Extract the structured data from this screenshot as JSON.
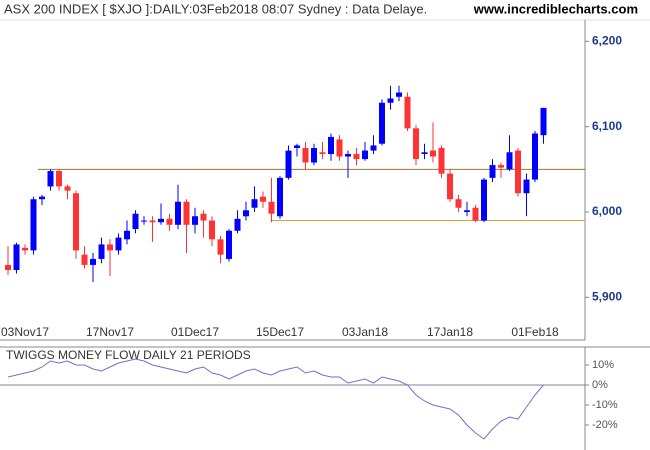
{
  "chart_data": [
    {
      "type": "candlestick",
      "title": "ASX 200 INDEX [ $XJO ]:DAILY:03Feb2018 08:07 Sydney : Data Delaye.",
      "source": "www.incrediblecharts.com",
      "categories": [
        null,
        null,
        "03Nov17",
        null,
        null,
        null,
        null,
        null,
        null,
        null,
        null,
        null,
        "17Nov17",
        null,
        null,
        null,
        null,
        null,
        null,
        null,
        null,
        null,
        "01Dec17",
        null,
        null,
        null,
        null,
        null,
        null,
        null,
        null,
        null,
        "15Dec17",
        null,
        null,
        null,
        null,
        null,
        null,
        null,
        null,
        null,
        "03Jan18",
        null,
        null,
        null,
        null,
        null,
        null,
        null,
        null,
        null,
        "17Jan18",
        null,
        null,
        null,
        null,
        null,
        null,
        null,
        null,
        null,
        "01Feb18",
        null
      ],
      "open": [
        5938,
        5932,
        5958,
        5955,
        6015,
        6030,
        6048,
        6030,
        6022,
        5950,
        5938,
        5945,
        5962,
        5955,
        5968,
        5980,
        5990,
        5990,
        5988,
        5992,
        5985,
        6012,
        5985,
        5998,
        5990,
        5968,
        5945,
        5978,
        5995,
        6005,
        6018,
        6012,
        5995,
        6040,
        6075,
        6075,
        6058,
        6070,
        6068,
        6085,
        6065,
        6068,
        6062,
        6072,
        6080,
        6128,
        6135,
        6135,
        6098,
        6068,
        6072,
        6075,
        6045,
        6015,
        6000,
        6005,
        5990,
        6040,
        6055,
        6050,
        6072,
        6022,
        6038,
        6090
      ],
      "high": [
        5960,
        5964,
        5962,
        6018,
        6020,
        6050,
        6050,
        6032,
        6025,
        5960,
        5952,
        5970,
        5968,
        5975,
        5990,
        6002,
        5995,
        5995,
        6010,
        5998,
        6032,
        6015,
        6005,
        6002,
        5995,
        5972,
        5980,
        6002,
        6012,
        6030,
        6024,
        6040,
        6042,
        6078,
        6080,
        6082,
        6080,
        6082,
        6092,
        6090,
        6072,
        6075,
        6082,
        6090,
        6132,
        6148,
        6148,
        6140,
        6102,
        6080,
        6105,
        6078,
        6050,
        6020,
        6012,
        6008,
        6040,
        6062,
        6058,
        6090,
        6075,
        6045,
        6095,
        6122
      ],
      "low": [
        5926,
        5928,
        5950,
        5950,
        6008,
        6025,
        6025,
        6015,
        5945,
        5934,
        5918,
        5940,
        5925,
        5950,
        5962,
        5975,
        5985,
        5965,
        5985,
        5978,
        5980,
        5952,
        5975,
        5970,
        5960,
        5940,
        5942,
        5975,
        5990,
        6000,
        6005,
        5988,
        5992,
        6038,
        6065,
        6050,
        6055,
        6062,
        6060,
        6060,
        6040,
        6055,
        6060,
        6068,
        6078,
        6120,
        6130,
        6095,
        6055,
        6062,
        6058,
        6040,
        6012,
        6000,
        5995,
        5988,
        5988,
        6035,
        6040,
        6048,
        6018,
        5995,
        6035,
        6080
      ],
      "close": [
        5932,
        5962,
        5955,
        6015,
        6018,
        6048,
        6030,
        6025,
        5955,
        5938,
        5945,
        5962,
        5955,
        5970,
        5978,
        5998,
        5990,
        5988,
        5992,
        5985,
        6012,
        5985,
        5995,
        5990,
        5968,
        5950,
        5978,
        5992,
        6002,
        6015,
        6012,
        5998,
        6040,
        6072,
        6078,
        6058,
        6075,
        6068,
        6088,
        6065,
        6068,
        6062,
        6072,
        6078,
        6128,
        6133,
        6140,
        6098,
        6062,
        6070,
        6065,
        6045,
        6015,
        6005,
        6002,
        5990,
        6038,
        6055,
        6052,
        6070,
        6022,
        6038,
        6092,
        6122
      ],
      "up_color": "#0000ff",
      "down_color": "#ff3333",
      "ylim": [
        5850,
        6225
      ],
      "yticks": [
        {
          "value": 5900,
          "label": "5,900"
        },
        {
          "value": 6000,
          "label": "6,000"
        },
        {
          "value": 6100,
          "label": "6,100"
        },
        {
          "value": 6200,
          "label": "6,200"
        }
      ],
      "hlines": [
        {
          "value": 6050,
          "color": "#a0742c"
        },
        {
          "value": 5990,
          "color": "#e0a030"
        }
      ]
    },
    {
      "type": "line",
      "title": "TWIGGS MONEY FLOW DAILY 21 PERIODS",
      "values": [
        4,
        5,
        6,
        7,
        9,
        12,
        11,
        12,
        10,
        10,
        8,
        7,
        9,
        11,
        12,
        13,
        12,
        10,
        9,
        8,
        7,
        6,
        8,
        9,
        6,
        5,
        3,
        5,
        7,
        8,
        6,
        5,
        7,
        8,
        9,
        6,
        7,
        5,
        4,
        4,
        1,
        2,
        3,
        1,
        4,
        3,
        2,
        0,
        -5,
        -8,
        -10,
        -11,
        -12,
        -15,
        -20,
        -24,
        -27,
        -22,
        -18,
        -16,
        -17,
        -11,
        -5,
        0
      ],
      "color": "#7070d0",
      "ylim": [
        -31.5,
        18.5
      ],
      "yticks": [
        {
          "value": -20,
          "label": "-20%"
        },
        {
          "value": -10,
          "label": "-10%"
        },
        {
          "value": 0,
          "label": "0%"
        },
        {
          "value": 10,
          "label": "10%"
        }
      ],
      "hlines": [
        {
          "value": 0,
          "color": "#8080a0"
        }
      ]
    }
  ]
}
